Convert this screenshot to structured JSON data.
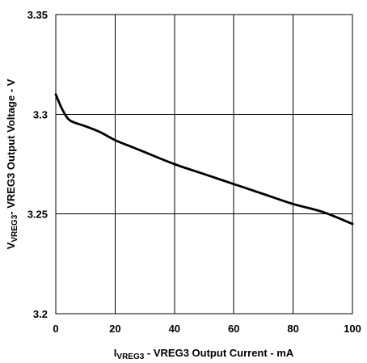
{
  "chart_data": {
    "type": "line",
    "title": "",
    "xlabel": {
      "prefix": "I",
      "sub": "VREG3",
      "suffix": " - VREG3 Output Current - mA"
    },
    "ylabel": {
      "prefix": "V",
      "sub": "VREG3",
      "suffix": "- VREG3 Output Voltage - V"
    },
    "xlim": [
      0,
      100
    ],
    "ylim": [
      3.2,
      3.35
    ],
    "xticks": [
      "0",
      "20",
      "40",
      "60",
      "80",
      "100"
    ],
    "yticks": [
      "3.2",
      "3.25",
      "3.3",
      "3.35"
    ],
    "grid": true,
    "series": [
      {
        "x": [
          0,
          2,
          4,
          6,
          10,
          15,
          20,
          25,
          30,
          40,
          50,
          60,
          70,
          80,
          90,
          100
        ],
        "y": [
          3.31,
          3.303,
          3.298,
          3.296,
          3.294,
          3.291,
          3.287,
          3.284,
          3.281,
          3.275,
          3.27,
          3.265,
          3.26,
          3.255,
          3.251,
          3.245
        ]
      }
    ]
  }
}
